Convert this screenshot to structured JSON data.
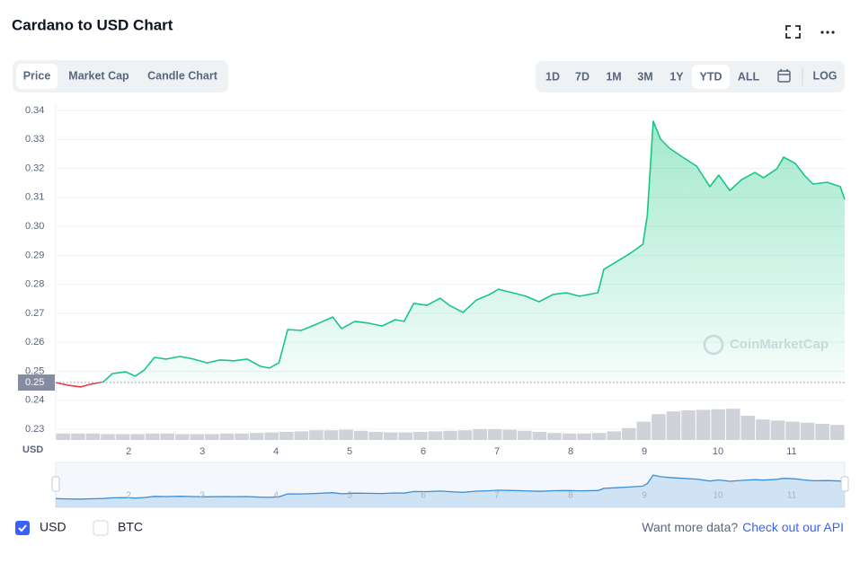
{
  "header": {
    "title": "Cardano to USD Chart"
  },
  "tabs": [
    "Price",
    "Market Cap",
    "Candle Chart"
  ],
  "ranges": [
    "1D",
    "7D",
    "1M",
    "3M",
    "1Y",
    "YTD",
    "ALL"
  ],
  "log_button": "LOG",
  "chart_data": {
    "type": "area",
    "x": [
      1.01,
      1.17,
      1.35,
      1.48,
      1.66,
      1.78,
      1.96,
      2.09,
      2.21,
      2.35,
      2.51,
      2.7,
      2.88,
      3.06,
      3.24,
      3.43,
      3.61,
      3.79,
      3.91,
      4.04,
      4.16,
      4.34,
      4.52,
      4.77,
      4.89,
      5.07,
      5.26,
      5.44,
      5.62,
      5.74,
      5.87,
      6.05,
      6.23,
      6.35,
      6.54,
      6.72,
      6.9,
      7.02,
      7.21,
      7.39,
      7.57,
      7.76,
      7.94,
      8.12,
      8.37,
      8.45,
      8.61,
      8.79,
      8.98,
      9.04,
      9.12,
      9.22,
      9.34,
      9.52,
      9.71,
      9.89,
      10.01,
      10.16,
      10.32,
      10.5,
      10.62,
      10.8,
      10.89,
      11.05,
      11.17,
      11.29,
      11.48,
      11.66,
      11.72
    ],
    "values": [
      0.2461,
      0.2452,
      0.2446,
      0.2455,
      0.2464,
      0.2492,
      0.2498,
      0.2483,
      0.2504,
      0.2548,
      0.2542,
      0.2551,
      0.2542,
      0.2529,
      0.2539,
      0.2536,
      0.2542,
      0.2517,
      0.2511,
      0.2529,
      0.2644,
      0.2641,
      0.2659,
      0.2687,
      0.2647,
      0.2672,
      0.2666,
      0.2656,
      0.2678,
      0.2672,
      0.2734,
      0.2728,
      0.2752,
      0.2728,
      0.2703,
      0.2746,
      0.2765,
      0.2783,
      0.2771,
      0.2759,
      0.274,
      0.2765,
      0.2771,
      0.2759,
      0.2771,
      0.2852,
      0.2876,
      0.2904,
      0.2938,
      0.3037,
      0.3363,
      0.3301,
      0.327,
      0.3239,
      0.3208,
      0.3137,
      0.3177,
      0.3124,
      0.3161,
      0.3186,
      0.3168,
      0.3199,
      0.3239,
      0.3217,
      0.3177,
      0.3146,
      0.3152,
      0.3137,
      0.3093
    ],
    "up_color": "#16c784",
    "down_color": "#ea3943",
    "reference": {
      "value": 0.2461,
      "label": "0.25"
    },
    "xlim": [
      1.01,
      11.72
    ],
    "ylim": [
      0.23,
      0.34
    ],
    "xticks": [
      2,
      3,
      4,
      5,
      6,
      7,
      8,
      9,
      10,
      11
    ],
    "yticks": [
      0.23,
      0.24,
      0.25,
      0.26,
      0.27,
      0.28,
      0.29,
      {
        "value": 0.3,
        "label": "0.30"
      },
      0.31,
      0.32,
      0.33,
      0.34
    ],
    "grid": true,
    "y_axis_label": "USD",
    "watermark": "CoinMarketCap",
    "volume": {
      "color": "#cfd3d9",
      "values": [
        12,
        12,
        12,
        11,
        11,
        11,
        12,
        12,
        11,
        11,
        11,
        12,
        12,
        13,
        14,
        15,
        16,
        18,
        18,
        19,
        17,
        15,
        14,
        14,
        15,
        16,
        17,
        18,
        20,
        20,
        19,
        17,
        15,
        13,
        12,
        12,
        13,
        16,
        22,
        34,
        48,
        53,
        55,
        56,
        57,
        58,
        45,
        38,
        36,
        34,
        32,
        30,
        28
      ]
    },
    "navigator_color": "#3a8fd9"
  },
  "currency_options": [
    "USD",
    "BTC"
  ],
  "footer": {
    "text": "Want more data?",
    "link": "Check out our API"
  }
}
